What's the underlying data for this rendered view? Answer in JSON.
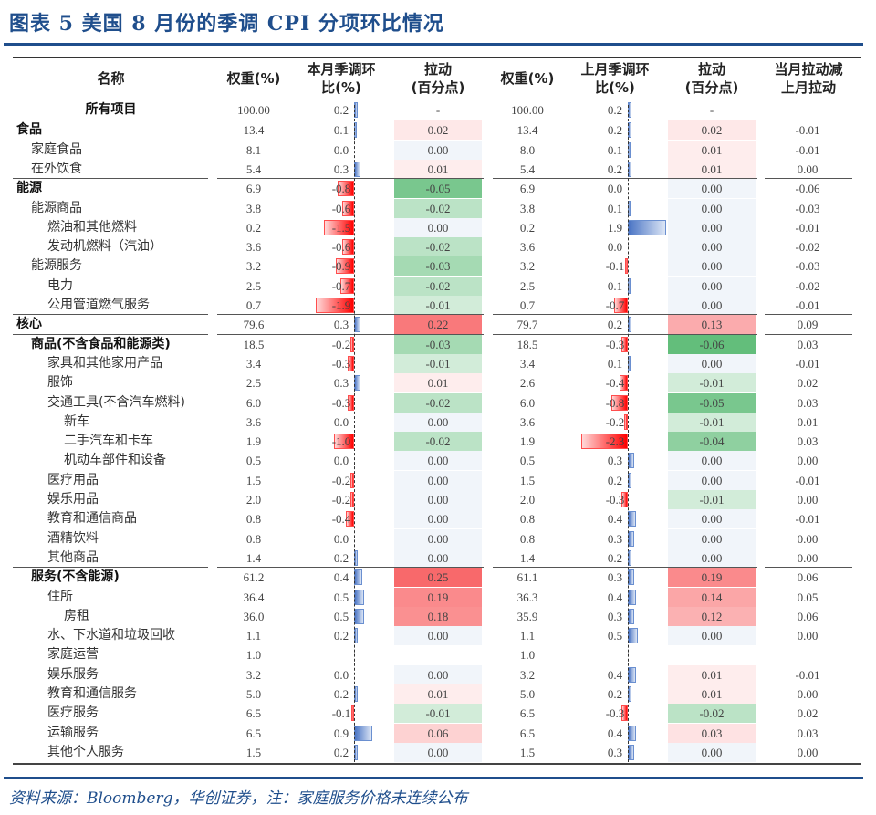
{
  "title": "图表 5   美国 8 月份的季调 CPI 分项环比情况",
  "source_note": "资料来源：Bloomberg，华创证券，注：家庭服务价格未连续公布",
  "headers": {
    "name": "名称",
    "weight_cur": "权重(%)",
    "mom_cur_l1": "本月季调环",
    "mom_cur_l2": "比(%)",
    "pull_cur_l1": "拉动",
    "pull_cur_l2": "(百分点)",
    "weight_prev": "权重(%)",
    "mom_prev_l1": "上月季调环",
    "mom_prev_l2": "比(%)",
    "pull_prev_l1": "拉动",
    "pull_prev_l2": "(百分点)",
    "diff_l1": "当月拉动减",
    "diff_l2": "上月拉动"
  },
  "colors": {
    "accent": "#1f4e8c",
    "positive_bar": "#4a74c4",
    "negative_bar": "#ff0000",
    "pull_high": "#f8696b",
    "pull_low": "#63be7b"
  },
  "rows": [
    {
      "name": "所有项目",
      "level": 0,
      "bold": true,
      "center": true,
      "w1": "100.00",
      "m1": "0.2",
      "p1": "-",
      "w2": "100.00",
      "m2": "0.2",
      "p2": "-",
      "d": ""
    },
    {
      "name": "食品",
      "level": 0,
      "bold": true,
      "w1": "13.4",
      "m1": "0.1",
      "p1": "0.02",
      "w2": "13.4",
      "m2": "0.2",
      "p2": "0.02",
      "d": "-0.01"
    },
    {
      "name": "家庭食品",
      "level": 1,
      "w1": "8.1",
      "m1": "0.0",
      "p1": "0.00",
      "w2": "8.0",
      "m2": "0.1",
      "p2": "0.01",
      "d": "-0.01"
    },
    {
      "name": "在外饮食",
      "level": 1,
      "w1": "5.4",
      "m1": "0.3",
      "p1": "0.01",
      "w2": "5.4",
      "m2": "0.2",
      "p2": "0.01",
      "d": "0.00"
    },
    {
      "name": "能源",
      "level": 0,
      "bold": true,
      "w1": "6.9",
      "m1": "-0.8",
      "p1": "-0.05",
      "w2": "6.9",
      "m2": "0.0",
      "p2": "0.00",
      "d": "-0.06"
    },
    {
      "name": "能源商品",
      "level": 1,
      "w1": "3.8",
      "m1": "-0.6",
      "p1": "-0.02",
      "w2": "3.8",
      "m2": "0.1",
      "p2": "0.00",
      "d": "-0.03"
    },
    {
      "name": "燃油和其他燃料",
      "level": 2,
      "w1": "0.2",
      "m1": "-1.5",
      "p1": "0.00",
      "w2": "0.2",
      "m2": "1.9",
      "p2": "0.00",
      "d": "-0.01"
    },
    {
      "name": "发动机燃料（汽油）",
      "level": 2,
      "w1": "3.6",
      "m1": "-0.6",
      "p1": "-0.02",
      "w2": "3.6",
      "m2": "0.0",
      "p2": "0.00",
      "d": "-0.02"
    },
    {
      "name": "能源服务",
      "level": 1,
      "w1": "3.2",
      "m1": "-0.9",
      "p1": "-0.03",
      "w2": "3.2",
      "m2": "-0.1",
      "p2": "0.00",
      "d": "-0.03"
    },
    {
      "name": "电力",
      "level": 2,
      "w1": "2.5",
      "m1": "-0.7",
      "p1": "-0.02",
      "w2": "2.5",
      "m2": "0.1",
      "p2": "0.00",
      "d": "-0.02"
    },
    {
      "name": "公用管道燃气服务",
      "level": 2,
      "w1": "0.7",
      "m1": "-1.9",
      "p1": "-0.01",
      "w2": "0.7",
      "m2": "-0.7",
      "p2": "0.00",
      "d": "-0.01"
    },
    {
      "name": "核心",
      "level": 0,
      "bold": true,
      "w1": "79.6",
      "m1": "0.3",
      "p1": "0.22",
      "w2": "79.7",
      "m2": "0.2",
      "p2": "0.13",
      "d": "0.09"
    },
    {
      "name": "商品(不含食品和能源类)",
      "level": 1,
      "bold": true,
      "w1": "18.5",
      "m1": "-0.2",
      "p1": "-0.03",
      "w2": "18.5",
      "m2": "-0.3",
      "p2": "-0.06",
      "d": "0.03"
    },
    {
      "name": "家具和其他家用产品",
      "level": 2,
      "w1": "3.4",
      "m1": "-0.3",
      "p1": "-0.01",
      "w2": "3.4",
      "m2": "0.1",
      "p2": "0.00",
      "d": "-0.01"
    },
    {
      "name": "服饰",
      "level": 2,
      "w1": "2.5",
      "m1": "0.3",
      "p1": "0.01",
      "w2": "2.6",
      "m2": "-0.4",
      "p2": "-0.01",
      "d": "0.02"
    },
    {
      "name": "交通工具(不含汽车燃料)",
      "level": 2,
      "w1": "6.0",
      "m1": "-0.3",
      "p1": "-0.02",
      "w2": "6.0",
      "m2": "-0.8",
      "p2": "-0.05",
      "d": "0.03"
    },
    {
      "name": "新车",
      "level": 3,
      "w1": "3.6",
      "m1": "0.0",
      "p1": "0.00",
      "w2": "3.6",
      "m2": "-0.2",
      "p2": "-0.01",
      "d": "0.01"
    },
    {
      "name": "二手汽车和卡车",
      "level": 3,
      "w1": "1.9",
      "m1": "-1.0",
      "p1": "-0.02",
      "w2": "1.9",
      "m2": "-2.3",
      "p2": "-0.04",
      "d": "0.03"
    },
    {
      "name": "机动车部件和设备",
      "level": 3,
      "w1": "0.5",
      "m1": "0.0",
      "p1": "0.00",
      "w2": "0.5",
      "m2": "0.3",
      "p2": "0.00",
      "d": "0.00"
    },
    {
      "name": "医疗用品",
      "level": 2,
      "w1": "1.5",
      "m1": "-0.2",
      "p1": "0.00",
      "w2": "1.5",
      "m2": "0.2",
      "p2": "0.00",
      "d": "-0.01"
    },
    {
      "name": "娱乐用品",
      "level": 2,
      "w1": "2.0",
      "m1": "-0.2",
      "p1": "0.00",
      "w2": "2.0",
      "m2": "-0.3",
      "p2": "-0.01",
      "d": "0.00"
    },
    {
      "name": "教育和通信商品",
      "level": 2,
      "w1": "0.8",
      "m1": "-0.4",
      "p1": "0.00",
      "w2": "0.8",
      "m2": "0.4",
      "p2": "0.00",
      "d": "-0.01"
    },
    {
      "name": "酒精饮料",
      "level": 2,
      "w1": "0.8",
      "m1": "0.0",
      "p1": "0.00",
      "w2": "0.8",
      "m2": "0.3",
      "p2": "0.00",
      "d": "0.00"
    },
    {
      "name": "其他商品",
      "level": 2,
      "w1": "1.4",
      "m1": "0.2",
      "p1": "0.00",
      "w2": "1.4",
      "m2": "0.2",
      "p2": "0.00",
      "d": "0.00"
    },
    {
      "name": "服务(不含能源)",
      "level": 1,
      "bold": true,
      "w1": "61.2",
      "m1": "0.4",
      "p1": "0.25",
      "w2": "61.1",
      "m2": "0.3",
      "p2": "0.19",
      "d": "0.06"
    },
    {
      "name": "住所",
      "level": 2,
      "w1": "36.4",
      "m1": "0.5",
      "p1": "0.19",
      "w2": "36.3",
      "m2": "0.4",
      "p2": "0.14",
      "d": "0.05"
    },
    {
      "name": "房租",
      "level": 3,
      "w1": "36.0",
      "m1": "0.5",
      "p1": "0.18",
      "w2": "35.9",
      "m2": "0.3",
      "p2": "0.12",
      "d": "0.06"
    },
    {
      "name": "水、下水道和垃圾回收",
      "level": 2,
      "w1": "1.1",
      "m1": "0.2",
      "p1": "0.00",
      "w2": "1.1",
      "m2": "0.5",
      "p2": "0.00",
      "d": "0.00"
    },
    {
      "name": "家庭运营",
      "level": 2,
      "w1": "1.0",
      "m1": "",
      "p1": "",
      "w2": "1.0",
      "m2": "",
      "p2": "",
      "d": ""
    },
    {
      "name": "娱乐服务",
      "level": 2,
      "w1": "3.2",
      "m1": "0.0",
      "p1": "0.00",
      "w2": "3.2",
      "m2": "0.4",
      "p2": "0.01",
      "d": "-0.01"
    },
    {
      "name": "教育和通信服务",
      "level": 2,
      "w1": "5.0",
      "m1": "0.2",
      "p1": "0.01",
      "w2": "5.0",
      "m2": "0.2",
      "p2": "0.01",
      "d": "0.00"
    },
    {
      "name": "医疗服务",
      "level": 2,
      "w1": "6.5",
      "m1": "-0.1",
      "p1": "-0.01",
      "w2": "6.5",
      "m2": "-0.3",
      "p2": "-0.02",
      "d": "0.02"
    },
    {
      "name": "运输服务",
      "level": 2,
      "w1": "6.5",
      "m1": "0.9",
      "p1": "0.06",
      "w2": "6.5",
      "m2": "0.4",
      "p2": "0.03",
      "d": "0.03"
    },
    {
      "name": "其他个人服务",
      "level": 2,
      "w1": "1.5",
      "m1": "0.2",
      "p1": "0.00",
      "w2": "1.5",
      "m2": "0.3",
      "p2": "0.00",
      "d": "0.00"
    }
  ]
}
